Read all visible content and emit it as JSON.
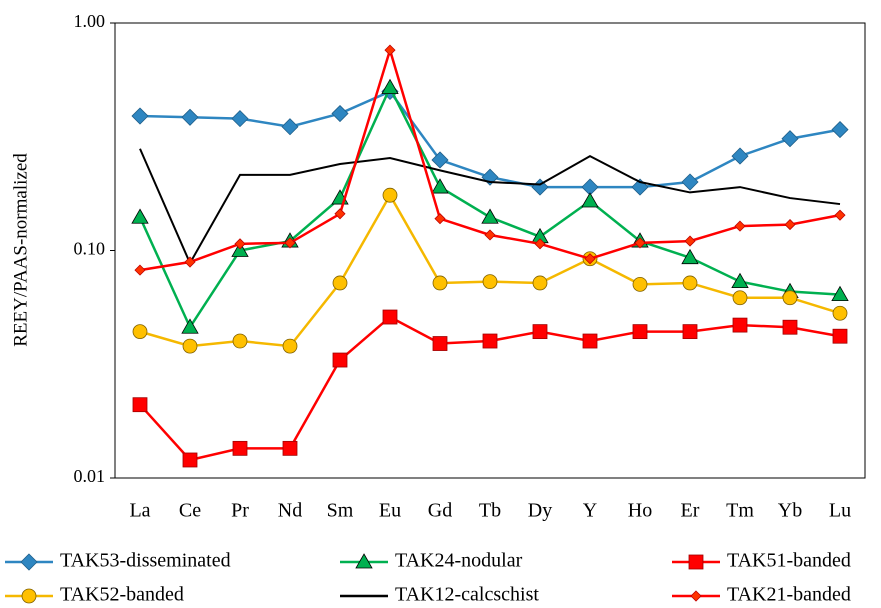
{
  "chart_data": {
    "type": "line",
    "y_label": "REEY/PAAS-normalized",
    "log_y": true,
    "categories": [
      "La",
      "Ce",
      "Pr",
      "Nd",
      "Sm",
      "Eu",
      "Gd",
      "Tb",
      "Dy",
      "Y",
      "Ho",
      "Er",
      "Tm",
      "Yb",
      "Lu"
    ],
    "ylim": [
      0.01,
      1
    ],
    "yticks": [
      {
        "value": 0.01,
        "label": "0.01"
      },
      {
        "value": 0.1,
        "label": "0.10"
      },
      {
        "value": 1,
        "label": "1.00"
      }
    ],
    "series": [
      {
        "name": "TAK53-disseminated",
        "color": "#2e86c1",
        "marker": "diamond",
        "marker_color": "#2e86c1",
        "values": [
          0.39,
          0.385,
          0.38,
          0.35,
          0.4,
          0.5,
          0.25,
          0.21,
          0.19,
          0.19,
          0.19,
          0.2,
          0.26,
          0.31,
          0.34
        ]
      },
      {
        "name": "TAK24-nodular",
        "color": "#00b050",
        "marker": "triangle",
        "marker_color": "#00b050",
        "values": [
          0.14,
          0.046,
          0.1,
          0.11,
          0.17,
          0.52,
          0.19,
          0.14,
          0.115,
          0.165,
          0.11,
          0.093,
          0.073,
          0.066,
          0.064
        ]
      },
      {
        "name": "TAK51-banded",
        "color": "#ff0000",
        "marker": "square",
        "marker_color": "#ff0000",
        "values": [
          0.021,
          0.012,
          0.0135,
          0.0135,
          0.033,
          0.051,
          0.039,
          0.04,
          0.044,
          0.04,
          0.044,
          0.044,
          0.047,
          0.046,
          0.042
        ]
      },
      {
        "name": "TAK52-banded",
        "color": "#f5b800",
        "marker": "circle",
        "marker_color": "#ffc000",
        "values": [
          0.044,
          0.038,
          0.04,
          0.038,
          0.072,
          0.175,
          0.072,
          0.073,
          0.072,
          0.092,
          0.071,
          0.072,
          0.062,
          0.062,
          0.053
        ]
      },
      {
        "name": "TAK12-calcschist",
        "color": "#000000",
        "marker": "none",
        "values": [
          0.28,
          0.088,
          0.215,
          0.215,
          0.24,
          0.255,
          0.225,
          0.2,
          0.195,
          0.26,
          0.2,
          0.18,
          0.19,
          0.17,
          0.16
        ]
      },
      {
        "name": "TAK21-banded",
        "color": "#ff0000",
        "marker": "small-diamond",
        "marker_color": "#ff3300",
        "values": [
          0.082,
          0.089,
          0.107,
          0.108,
          0.145,
          0.76,
          0.138,
          0.117,
          0.107,
          0.092,
          0.108,
          0.11,
          0.128,
          0.13,
          0.143
        ]
      }
    ]
  }
}
